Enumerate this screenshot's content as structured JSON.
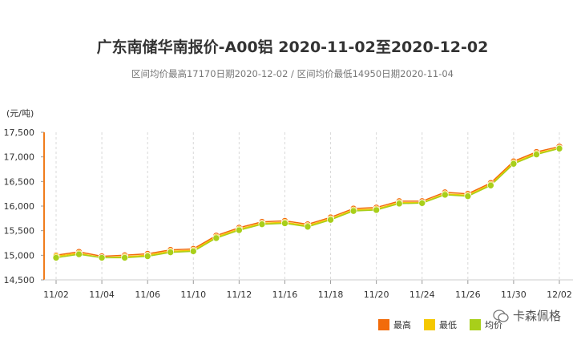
{
  "chart_data": {
    "type": "line",
    "title": "广东南储华南报价-A00铝 2020-11-02至2020-12-02",
    "subtitle": "区间均价最高17170日期2020-12-02 / 区间均价最低14950日期2020-11-04",
    "ylabel": "(元/吨)",
    "ylim": [
      14500,
      17500
    ],
    "yticks": [
      "14,500",
      "15,000",
      "15,500",
      "16,000",
      "16,500",
      "17,000",
      "17,500"
    ],
    "ytick_values": [
      14500,
      15000,
      15500,
      16000,
      16500,
      17000,
      17500
    ],
    "xtick_labels": [
      "11/02",
      "11/04",
      "11/06",
      "11/10",
      "11/12",
      "11/16",
      "11/18",
      "11/20",
      "11/24",
      "11/26",
      "11/30",
      "12/02"
    ],
    "x": [
      "11/02",
      "11/03",
      "11/04",
      "11/05",
      "11/06",
      "11/09",
      "11/10",
      "11/11",
      "11/12",
      "11/13",
      "11/16",
      "11/17",
      "11/18",
      "11/19",
      "11/20",
      "11/23",
      "11/24",
      "11/25",
      "11/26",
      "11/27",
      "11/30",
      "12/01",
      "12/02"
    ],
    "series": [
      {
        "name": "最高",
        "color": "#f26b0a",
        "values": [
          15000,
          15070,
          14980,
          15000,
          15030,
          15110,
          15130,
          15400,
          15560,
          15680,
          15700,
          15630,
          15770,
          15950,
          15970,
          16100,
          16100,
          16280,
          16250,
          16470,
          16910,
          17100,
          17210
        ]
      },
      {
        "name": "最低",
        "color": "#f5c800",
        "values": [
          14980,
          15040,
          14950,
          14970,
          15000,
          15080,
          15100,
          15370,
          15530,
          15650,
          15670,
          15600,
          15740,
          15920,
          15940,
          16070,
          16070,
          16250,
          16220,
          16440,
          16880,
          17070,
          17180
        ]
      },
      {
        "name": "均价",
        "color": "#a8cf1a",
        "values": [
          14950,
          15020,
          14950,
          14950,
          14980,
          15060,
          15080,
          15350,
          15510,
          15630,
          15650,
          15580,
          15720,
          15900,
          15920,
          16050,
          16060,
          16230,
          16200,
          16420,
          16860,
          17050,
          17170
        ]
      }
    ],
    "grid": "vertical-dashed",
    "legend": "bottom-right"
  },
  "watermark": "卡森佩格"
}
